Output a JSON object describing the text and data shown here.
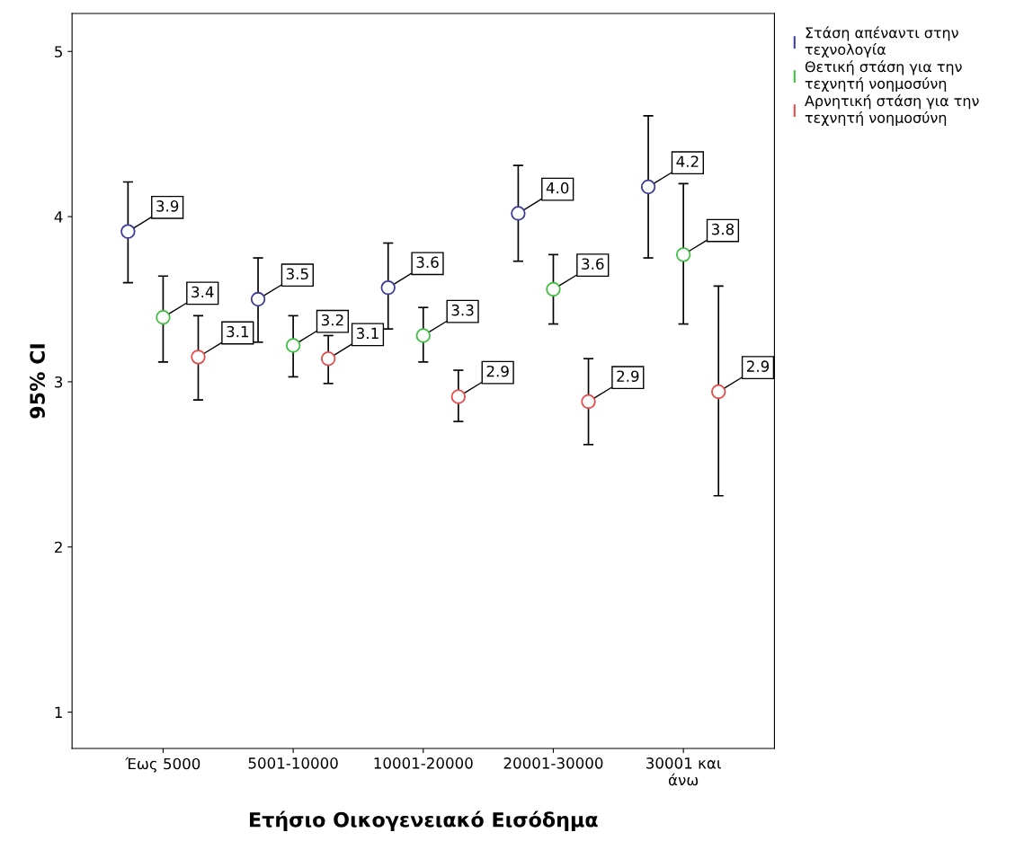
{
  "chart_data": {
    "type": "scatter",
    "xlabel": "Ετήσιο Οικογενειακό Εισόδημα",
    "ylabel": "95% CI",
    "categories": [
      "Έως 5000",
      "5001-10000",
      "10001-20000",
      "20001-30000",
      "30001 και\nάνω"
    ],
    "ylim": [
      0.78,
      5.23
    ],
    "yticks": [
      1,
      2,
      3,
      4,
      5
    ],
    "grid": false,
    "legend": "top right",
    "marker": "circle",
    "series": [
      {
        "name": "Στάση απέναντι στην\nτεχνολογία",
        "color": "#3d3d99",
        "values": [
          3.91,
          3.5,
          3.57,
          4.02,
          4.18
        ],
        "errors": [
          [
            3.6,
            4.21
          ],
          [
            3.24,
            3.75
          ],
          [
            3.32,
            3.84
          ],
          [
            3.73,
            4.31
          ],
          [
            3.75,
            4.61
          ]
        ],
        "value_labels": [
          "3.9",
          "3.5",
          "3.6",
          "4.0",
          "4.2"
        ]
      },
      {
        "name": "Θετική στάση για την\nτεχνητή νοημοσύνη",
        "color": "#3fbf3f",
        "values": [
          3.39,
          3.22,
          3.28,
          3.56,
          3.77
        ],
        "errors": [
          [
            3.12,
            3.64
          ],
          [
            3.03,
            3.4
          ],
          [
            3.12,
            3.45
          ],
          [
            3.35,
            3.77
          ],
          [
            3.35,
            4.2
          ]
        ],
        "value_labels": [
          "3.4",
          "3.2",
          "3.3",
          "3.6",
          "3.8"
        ]
      },
      {
        "name": "Αρνητική στάση για την\nτεχνητή νοημοσύνη",
        "color": "#e84a4a",
        "values": [
          3.15,
          3.14,
          2.91,
          2.88,
          2.94
        ],
        "errors": [
          [
            2.89,
            3.4
          ],
          [
            2.99,
            3.28
          ],
          [
            2.76,
            3.07
          ],
          [
            2.62,
            3.14
          ],
          [
            2.31,
            3.58
          ]
        ],
        "value_labels": [
          "3.1",
          "3.1",
          "2.9",
          "2.9",
          "2.9"
        ]
      }
    ]
  }
}
